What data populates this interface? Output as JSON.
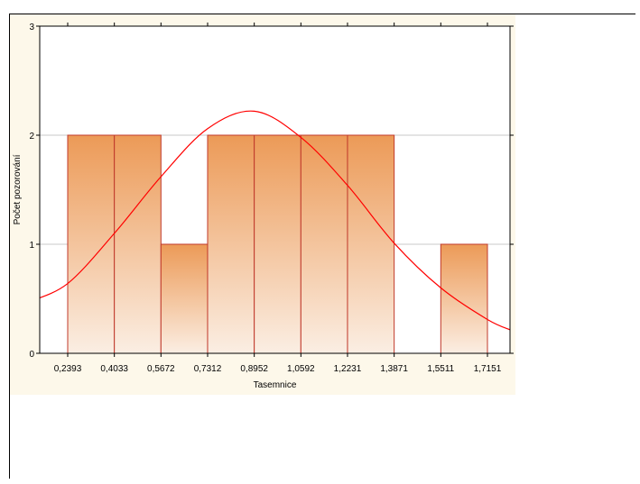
{
  "chart_data": {
    "type": "bar",
    "title": "",
    "xlabel": "Tasemnice",
    "ylabel": "Počet pozorování",
    "categories": [
      "0,2393",
      "0,4033",
      "0,5672",
      "0,7312",
      "0,8952",
      "1,0592",
      "1,2231",
      "1,3871",
      "1,5511",
      "1,7151"
    ],
    "bins": [
      {
        "from": 0.2393,
        "to": 0.4033,
        "count": 2
      },
      {
        "from": 0.4033,
        "to": 0.5672,
        "count": 2
      },
      {
        "from": 0.5672,
        "to": 0.7312,
        "count": 1
      },
      {
        "from": 0.7312,
        "to": 0.8952,
        "count": 2
      },
      {
        "from": 0.8952,
        "to": 1.0592,
        "count": 2
      },
      {
        "from": 1.0592,
        "to": 1.2231,
        "count": 2
      },
      {
        "from": 1.2231,
        "to": 1.3871,
        "count": 2
      },
      {
        "from": 1.3871,
        "to": 1.5511,
        "count": 0
      },
      {
        "from": 1.5511,
        "to": 1.7151,
        "count": 1
      }
    ],
    "ylim": [
      0,
      3
    ],
    "yticks": [
      "0",
      "1",
      "2",
      "3"
    ],
    "grid": true,
    "normal_curve": {
      "peak_x": 0.904,
      "peak_y": 2.22,
      "points": [
        {
          "x": 0.1,
          "y": 0.47
        },
        {
          "x": 0.2393,
          "y": 0.64
        },
        {
          "x": 0.4033,
          "y": 1.1
        },
        {
          "x": 0.5672,
          "y": 1.62
        },
        {
          "x": 0.7312,
          "y": 2.06
        },
        {
          "x": 0.8952,
          "y": 2.22
        },
        {
          "x": 1.0592,
          "y": 1.98
        },
        {
          "x": 1.2231,
          "y": 1.54
        },
        {
          "x": 1.3871,
          "y": 1.01
        },
        {
          "x": 1.5511,
          "y": 0.6
        },
        {
          "x": 1.7151,
          "y": 0.31
        },
        {
          "x": 1.8,
          "y": 0.21
        }
      ]
    },
    "colors": {
      "bar_top": "#ec9a57",
      "bar_bottom": "#fbeee3",
      "bar_edge": "#c0392b",
      "curve": "#ff0000",
      "plot_bg": "#ffffff",
      "panel_bg": "#fdf8ea"
    }
  }
}
